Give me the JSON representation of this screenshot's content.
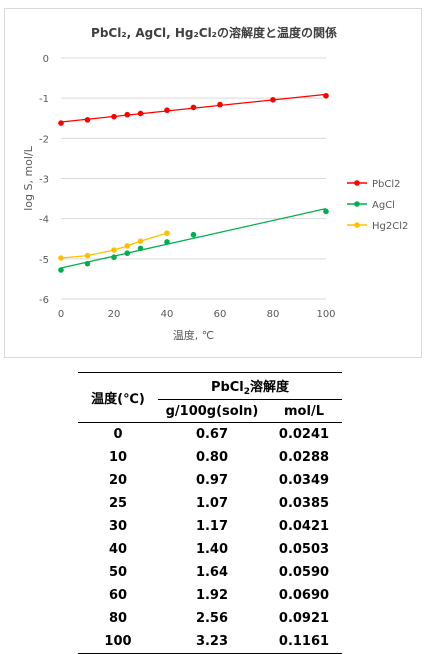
{
  "chart_data": {
    "type": "line",
    "title": "PbCl₂, AgCl, Hg₂Cl₂の溶解度と温度の関係",
    "xlabel": "温度, ℃",
    "ylabel": "log S, mol/L",
    "xlim": [
      0,
      100
    ],
    "ylim": [
      -6,
      0
    ],
    "xticks": [
      0,
      20,
      40,
      60,
      80,
      100
    ],
    "yticks": [
      0,
      -1,
      -2,
      -3,
      -4,
      -5,
      -6
    ],
    "legend_position": "right",
    "grid": "horizontal",
    "series": [
      {
        "name": "PbCl2",
        "color": "#ff0000",
        "x": [
          0,
          10,
          20,
          25,
          30,
          40,
          50,
          60,
          80,
          100
        ],
        "y": [
          -1.62,
          -1.54,
          -1.46,
          -1.41,
          -1.38,
          -1.3,
          -1.23,
          -1.16,
          -1.04,
          -0.94
        ]
      },
      {
        "name": "AgCl",
        "color": "#00b050",
        "x": [
          0,
          10,
          20,
          25,
          30,
          40,
          50,
          100
        ],
        "y": [
          -5.28,
          -5.12,
          -4.96,
          -4.86,
          -4.74,
          -4.58,
          -4.4,
          -3.82
        ]
      },
      {
        "name": "Hg2Cl2",
        "color": "#ffc000",
        "x": [
          0,
          10,
          20,
          25,
          30,
          40
        ],
        "y": [
          -4.98,
          -4.92,
          -4.78,
          -4.68,
          -4.56,
          -4.36
        ]
      }
    ]
  },
  "table": {
    "header_temp": "温度(℃)",
    "header_group_pre": "PbCl",
    "header_group_sub": "2",
    "header_group_post": "溶解度",
    "col1_header": "g/100g(soln)",
    "col2_header": "mol/L",
    "rows": [
      [
        "0",
        "0.67",
        "0.0241"
      ],
      [
        "10",
        "0.80",
        "0.0288"
      ],
      [
        "20",
        "0.97",
        "0.0349"
      ],
      [
        "25",
        "1.07",
        "0.0385"
      ],
      [
        "30",
        "1.17",
        "0.0421"
      ],
      [
        "40",
        "1.40",
        "0.0503"
      ],
      [
        "50",
        "1.64",
        "0.0590"
      ],
      [
        "60",
        "1.92",
        "0.0690"
      ],
      [
        "80",
        "2.56",
        "0.0921"
      ],
      [
        "100",
        "3.23",
        "0.1161"
      ]
    ]
  }
}
